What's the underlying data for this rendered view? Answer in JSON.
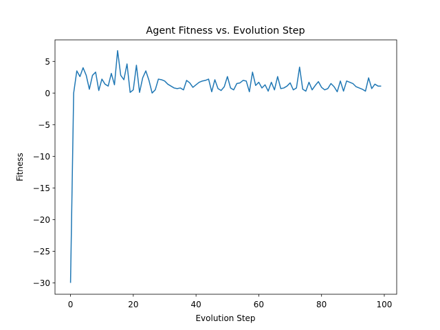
{
  "chart_data": {
    "type": "line",
    "title": "Agent Fitness vs. Evolution Step",
    "xlabel": "Evolution Step",
    "ylabel": "Fitness",
    "color": "#1f77b4",
    "x": [
      0,
      1,
      2,
      3,
      4,
      5,
      6,
      7,
      8,
      9,
      10,
      11,
      12,
      13,
      14,
      15,
      16,
      17,
      18,
      19,
      20,
      21,
      22,
      23,
      24,
      25,
      26,
      27,
      28,
      29,
      30,
      31,
      32,
      33,
      34,
      35,
      36,
      37,
      38,
      39,
      40,
      41,
      42,
      43,
      44,
      45,
      46,
      47,
      48,
      49,
      50,
      51,
      52,
      53,
      54,
      55,
      56,
      57,
      58,
      59,
      60,
      61,
      62,
      63,
      64,
      65,
      66,
      67,
      68,
      69,
      70,
      71,
      72,
      73,
      74,
      75,
      76,
      77,
      78,
      79,
      80,
      81,
      82,
      83,
      84,
      85,
      86,
      87,
      88,
      89,
      90,
      91,
      92,
      93,
      94,
      95,
      96,
      97,
      98,
      99
    ],
    "values": [
      -30,
      0,
      3.5,
      2.6,
      4.0,
      2.8,
      0.6,
      2.8,
      3.3,
      0.4,
      2.2,
      1.4,
      1.1,
      3.1,
      1.3,
      6.7,
      2.8,
      2.1,
      4.6,
      0.1,
      0.5,
      4.4,
      0.1,
      2.4,
      3.5,
      2.0,
      0.0,
      0.5,
      2.2,
      2.1,
      1.9,
      1.4,
      1.1,
      0.8,
      0.7,
      0.8,
      0.5,
      2.0,
      1.6,
      0.9,
      1.3,
      1.7,
      1.9,
      2.0,
      2.2,
      0.2,
      2.1,
      0.7,
      0.4,
      1.0,
      2.6,
      0.8,
      0.5,
      1.5,
      1.6,
      2.0,
      1.9,
      0.2,
      3.3,
      1.2,
      1.7,
      0.8,
      1.3,
      0.3,
      1.7,
      0.5,
      2.6,
      0.7,
      0.8,
      1.1,
      1.6,
      0.5,
      0.8,
      4.1,
      0.6,
      0.3,
      1.7,
      0.5,
      1.2,
      1.8,
      0.9,
      0.5,
      0.7,
      1.5,
      1.0,
      0.2,
      1.9,
      0.3,
      1.9,
      1.7,
      1.5,
      1.0,
      0.8,
      0.6,
      0.3,
      2.4,
      0.7,
      1.4,
      1.1,
      1.1
    ],
    "xlim": [
      -4.95,
      103.95
    ],
    "xticks": [
      0,
      20,
      40,
      60,
      80,
      100
    ],
    "ylim": [
      -31.8,
      8.4
    ],
    "yticks": [
      {
        "value": -30,
        "label": "−30"
      },
      {
        "value": -25,
        "label": "−25"
      },
      {
        "value": -20,
        "label": "−20"
      },
      {
        "value": -15,
        "label": "−15"
      },
      {
        "value": -10,
        "label": "−10"
      },
      {
        "value": -5,
        "label": "−5"
      },
      0,
      5
    ]
  }
}
